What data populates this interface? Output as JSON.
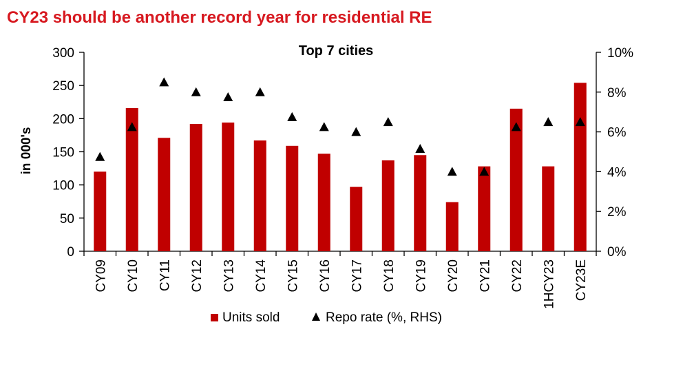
{
  "headline": "CY23 should be another record year for residential RE",
  "chart_data": {
    "type": "bar",
    "title": "Top 7 cities",
    "ylabel": "in 000's",
    "y2label": "",
    "categories": [
      "CY09",
      "CY10",
      "CY11",
      "CY12",
      "CY13",
      "CY14",
      "CY15",
      "CY16",
      "CY17",
      "CY18",
      "CY19",
      "CY20",
      "CY21",
      "CY22",
      "1HCY23",
      "CY23E"
    ],
    "series": [
      {
        "name": "Units sold",
        "kind": "bar",
        "axis": "left",
        "color": "#c00000",
        "values": [
          120,
          216,
          171,
          192,
          194,
          167,
          159,
          147,
          97,
          137,
          145,
          74,
          128,
          215,
          128,
          254
        ]
      },
      {
        "name": "Repo rate (%, RHS)",
        "kind": "marker",
        "axis": "right",
        "marker": "triangle",
        "color": "#000000",
        "values": [
          4.75,
          6.25,
          8.5,
          8.0,
          7.75,
          8.0,
          6.75,
          6.25,
          6.0,
          6.5,
          5.15,
          4.0,
          4.0,
          6.25,
          6.5,
          6.5
        ]
      }
    ],
    "ylim": [
      0,
      300
    ],
    "yticks": [
      0,
      50,
      100,
      150,
      200,
      250,
      300
    ],
    "y2lim": [
      0,
      10
    ],
    "y2ticks": [
      "0%",
      "2%",
      "4%",
      "6%",
      "8%",
      "10%"
    ],
    "legend_position": "bottom",
    "grid": false
  }
}
